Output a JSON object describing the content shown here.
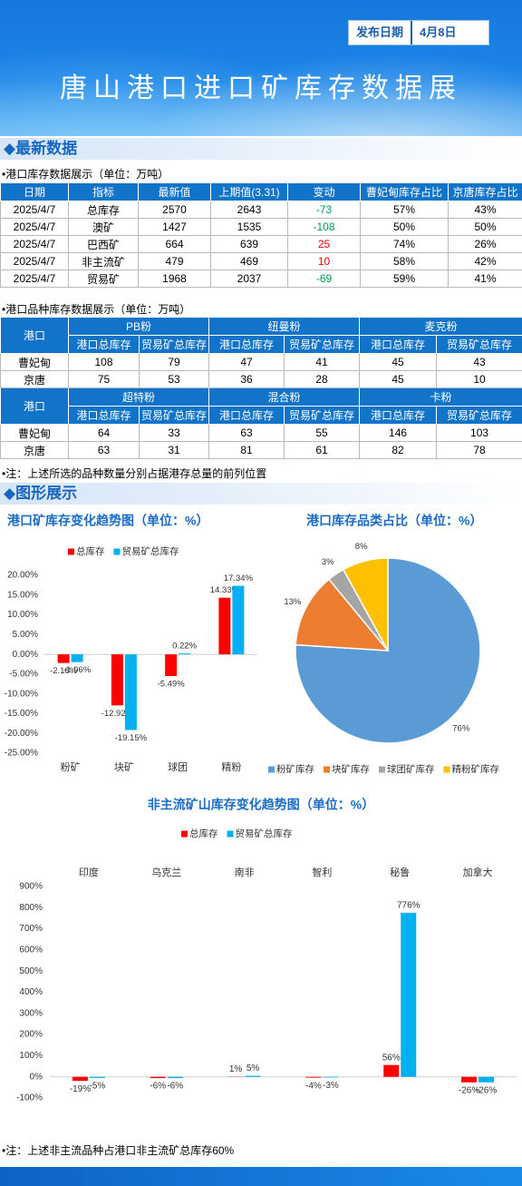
{
  "header": {
    "date_label": "发布日期",
    "date": "4月8日",
    "title": "唐山港口进口矿库存数据展"
  },
  "section1": "◆最新数据",
  "table1": {
    "caption": "•港口库存数据展示（单位：万吨）",
    "headers": [
      "日期",
      "指标",
      "最新值",
      "上期值(3.31)",
      "变动",
      "曹妃甸库存占比",
      "京唐库存占比"
    ],
    "rows": [
      [
        "2025/4/7",
        "总库存",
        2570,
        2643,
        -73,
        "57%",
        "43%"
      ],
      [
        "2025/4/7",
        "澳矿",
        1427,
        1535,
        -108,
        "50%",
        "50%"
      ],
      [
        "2025/4/7",
        "巴西矿",
        664,
        639,
        25,
        "74%",
        "26%"
      ],
      [
        "2025/4/7",
        "非主流矿",
        479,
        469,
        10,
        "58%",
        "42%"
      ],
      [
        "2025/4/7",
        "贸易矿",
        1968,
        2037,
        -69,
        "59%",
        "41%"
      ]
    ]
  },
  "table2": {
    "caption": "•港口品种库存数据展示（单位：万吨）",
    "blocks": [
      {
        "port_header": "港口",
        "groups": [
          "PB粉",
          "纽曼粉",
          "麦克粉"
        ],
        "subheaders": [
          "港口总库存",
          "贸易矿总库存",
          "港口总库存",
          "贸易矿总库存",
          "港口总库存",
          "贸易矿总库存"
        ],
        "rows": [
          [
            "曹妃甸",
            108,
            79,
            47,
            41,
            45,
            43
          ],
          [
            "京唐",
            75,
            53,
            36,
            28,
            45,
            10
          ]
        ]
      },
      {
        "port_header": "港口",
        "groups": [
          "超特粉",
          "混合粉",
          "卡粉"
        ],
        "subheaders": [
          "港口总库存",
          "贸易矿总库存",
          "港口总库存",
          "贸易矿总库存",
          "港口总库存",
          "贸易矿总库存"
        ],
        "rows": [
          [
            "曹妃甸",
            64,
            33,
            63,
            55,
            146,
            103
          ],
          [
            "京唐",
            63,
            31,
            81,
            61,
            82,
            78
          ]
        ]
      }
    ]
  },
  "note1": "•注：上述所选的品种数量分别占据港存总量的前列位置",
  "section2": "◆图形展示",
  "chart_data": [
    {
      "type": "bar",
      "title": "港口矿库存变化趋势图（单位：%）",
      "categories": [
        "粉矿",
        "块矿",
        "球团",
        "精粉"
      ],
      "series": [
        {
          "name": "总库存",
          "color": "#ff0000",
          "values": [
            -2.18,
            -12.92,
            -5.49,
            14.33
          ],
          "value_labels": [
            "-2.18%",
            "-12.92%",
            "-5.49%",
            "14.33%"
          ]
        },
        {
          "name": "贸易矿总库存",
          "color": "#00b0f0",
          "values": [
            -1.96,
            -19.15,
            0.22,
            17.34
          ],
          "value_labels": [
            "-1.96%",
            "-19.15%",
            "0.22%",
            "17.34%"
          ]
        }
      ],
      "ylim": [
        -25,
        20
      ],
      "yticks": [
        {
          "value": -25,
          "label": "-25.00%"
        },
        {
          "value": -20,
          "label": "-20.00%"
        },
        {
          "value": -15,
          "label": "-15.00%"
        },
        {
          "value": -10,
          "label": "-10.00%"
        },
        {
          "value": -5,
          "label": "-5.00%"
        },
        {
          "value": 0,
          "label": "0.00%"
        },
        {
          "value": 5,
          "label": "5.00%"
        },
        {
          "value": 10,
          "label": "10.00%"
        },
        {
          "value": 15,
          "label": "15.00%"
        },
        {
          "value": 20,
          "label": "20.00%"
        }
      ],
      "grid": false
    },
    {
      "type": "pie",
      "title": "港口库存品类占比（单位：%）",
      "categories": [
        "粉矿库存",
        "块矿库存",
        "球团矿库存",
        "精粉矿库存"
      ],
      "values": [
        76,
        13,
        3,
        8
      ],
      "value_labels": [
        "76%",
        "13%",
        "3%",
        "8%"
      ],
      "colors": [
        "#5b9bd5",
        "#ed7d31",
        "#a5a5a5",
        "#ffc000"
      ]
    },
    {
      "type": "bar",
      "title": "非主流矿山库存变化趋势图（单位：%）",
      "categories": [
        "印度",
        "乌克兰",
        "南非",
        "智利",
        "秘鲁",
        "加拿大"
      ],
      "series": [
        {
          "name": "总库存",
          "color": "#ff0000",
          "values": [
            -19,
            -6,
            1,
            -4,
            56,
            -26
          ],
          "value_labels": [
            "-19%",
            "-6%",
            "1%",
            "-4%",
            "56%",
            "-26%"
          ]
        },
        {
          "name": "贸易矿总库存",
          "color": "#00b0f0",
          "values": [
            -5,
            -6,
            5,
            -3,
            776,
            -26
          ],
          "value_labels": [
            "-5%",
            "-6%",
            "5%",
            "-3%",
            "776%",
            "-26%"
          ]
        }
      ],
      "ylim": [
        -100,
        900
      ],
      "yticks": [
        {
          "value": -100,
          "label": "-100%"
        },
        {
          "value": 0,
          "label": "0%"
        },
        {
          "value": 100,
          "label": "100%"
        },
        {
          "value": 200,
          "label": "200%"
        },
        {
          "value": 300,
          "label": "300%"
        },
        {
          "value": 400,
          "label": "400%"
        },
        {
          "value": 500,
          "label": "500%"
        },
        {
          "value": 600,
          "label": "600%"
        },
        {
          "value": 700,
          "label": "700%"
        },
        {
          "value": 800,
          "label": "800%"
        },
        {
          "value": 900,
          "label": "900%"
        }
      ],
      "grid": false
    }
  ],
  "note2": "•注：上述非主流品种占港口非主流矿总库存60%"
}
